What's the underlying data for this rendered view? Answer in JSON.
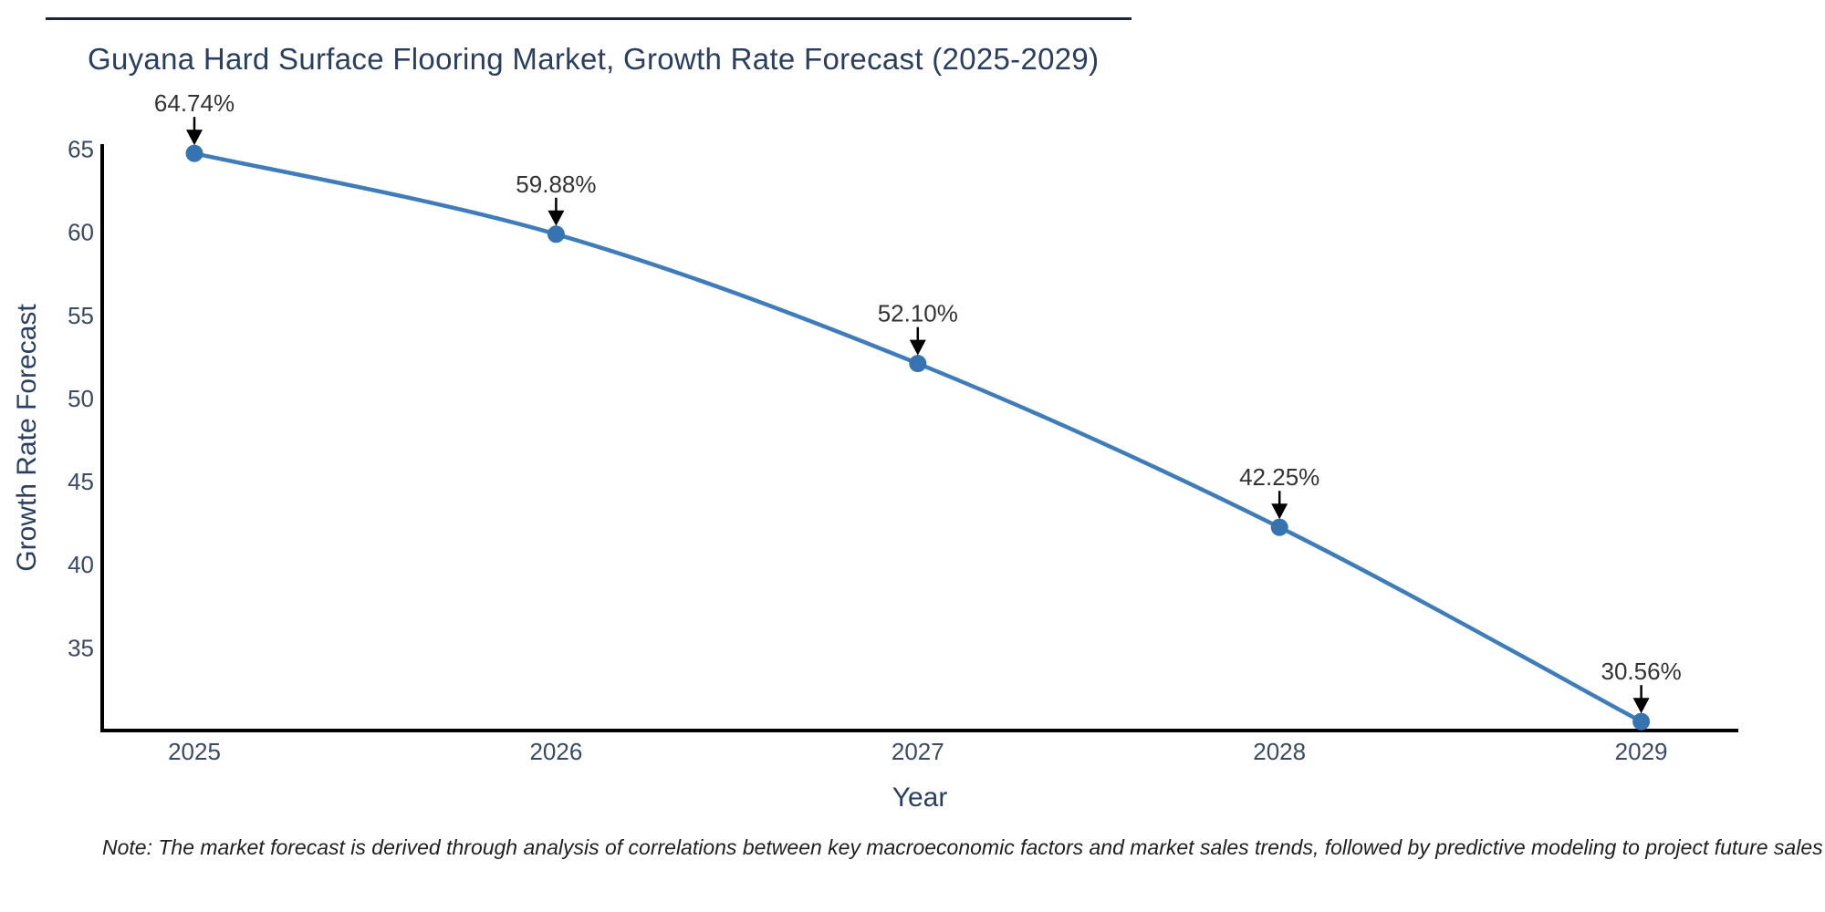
{
  "figure": {
    "title": "Guyana Hard Surface Flooring Market, Growth Rate Forecast (2025-2029)",
    "note": "Note: The market forecast is derived through analysis of correlations between key macroeconomic factors and market sales trends, followed by predictive modeling to project future sales"
  },
  "chart_data": {
    "type": "line",
    "title": "Guyana Hard Surface Flooring Market, Growth Rate Forecast (2025-2029)",
    "xlabel": "Year",
    "ylabel": "Growth Rate Forecast",
    "x": [
      2025,
      2026,
      2027,
      2028,
      2029
    ],
    "series": [
      {
        "name": "Growth Rate Forecast",
        "values": [
          64.74,
          59.88,
          52.1,
          42.25,
          30.56
        ]
      }
    ],
    "point_labels": [
      "64.74%",
      "59.88%",
      "52.10%",
      "42.25%",
      "30.56%"
    ],
    "x_tick_labels": [
      "2025",
      "2026",
      "2027",
      "2028",
      "2029"
    ],
    "y_ticks": [
      65,
      60,
      55,
      50,
      45,
      40,
      35
    ],
    "ylim": [
      30,
      65.3
    ],
    "grid": false,
    "legend": false,
    "line_shape": "spline",
    "colors": {
      "line": "#3e7cba",
      "marker": "#3574b0",
      "axis": "#000000",
      "tick_text": "#3b4a63",
      "annotation_text": "#333333",
      "arrow": "#000000",
      "title_text": "#2a3f5f"
    }
  }
}
